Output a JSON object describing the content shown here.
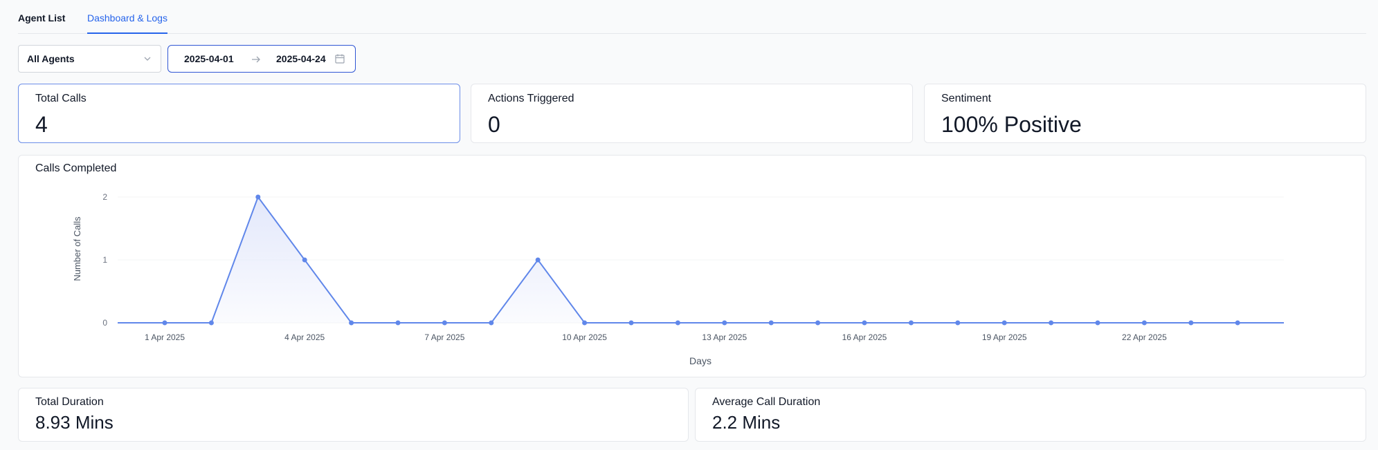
{
  "tabs": [
    {
      "label": "Agent List",
      "active": false
    },
    {
      "label": "Dashboard & Logs",
      "active": true
    }
  ],
  "filters": {
    "agent_select": {
      "value": "All Agents"
    },
    "date_range": {
      "start": "2025-04-01",
      "end": "2025-04-24"
    }
  },
  "stats": {
    "total_calls": {
      "label": "Total Calls",
      "value": "4"
    },
    "actions_triggered": {
      "label": "Actions Triggered",
      "value": "0"
    },
    "sentiment": {
      "label": "Sentiment",
      "value": "100% Positive"
    }
  },
  "durations": {
    "total": {
      "label": "Total Duration",
      "value": "8.93 Mins"
    },
    "average": {
      "label": "Average Call Duration",
      "value": "2.2 Mins"
    }
  },
  "chart": {
    "title": "Calls Completed"
  },
  "chart_data": {
    "type": "area",
    "title": "Calls Completed",
    "xlabel": "Days",
    "ylabel": "Number of Calls",
    "x": [
      "1 Apr 2025",
      "2 Apr 2025",
      "3 Apr 2025",
      "4 Apr 2025",
      "5 Apr 2025",
      "6 Apr 2025",
      "7 Apr 2025",
      "8 Apr 2025",
      "9 Apr 2025",
      "10 Apr 2025",
      "11 Apr 2025",
      "12 Apr 2025",
      "13 Apr 2025",
      "14 Apr 2025",
      "15 Apr 2025",
      "16 Apr 2025",
      "17 Apr 2025",
      "18 Apr 2025",
      "19 Apr 2025",
      "20 Apr 2025",
      "21 Apr 2025",
      "22 Apr 2025",
      "23 Apr 2025",
      "24 Apr 2025"
    ],
    "series": [
      {
        "values": [
          0,
          0,
          2,
          1,
          0,
          0,
          0,
          0,
          1,
          0,
          0,
          0,
          0,
          0,
          0,
          0,
          0,
          0,
          0,
          0,
          0,
          0,
          0,
          0
        ]
      }
    ],
    "x_tick_labels": [
      "1 Apr 2025",
      "4 Apr 2025",
      "7 Apr 2025",
      "10 Apr 2025",
      "13 Apr 2025",
      "16 Apr 2025",
      "19 Apr 2025",
      "22 Apr 2025"
    ],
    "y_ticks": [
      "0",
      "1",
      "2"
    ],
    "ylim": [
      0,
      2
    ],
    "grid": true,
    "colors": {
      "line": "#6087ea",
      "fill": "#e3e8fb"
    }
  }
}
